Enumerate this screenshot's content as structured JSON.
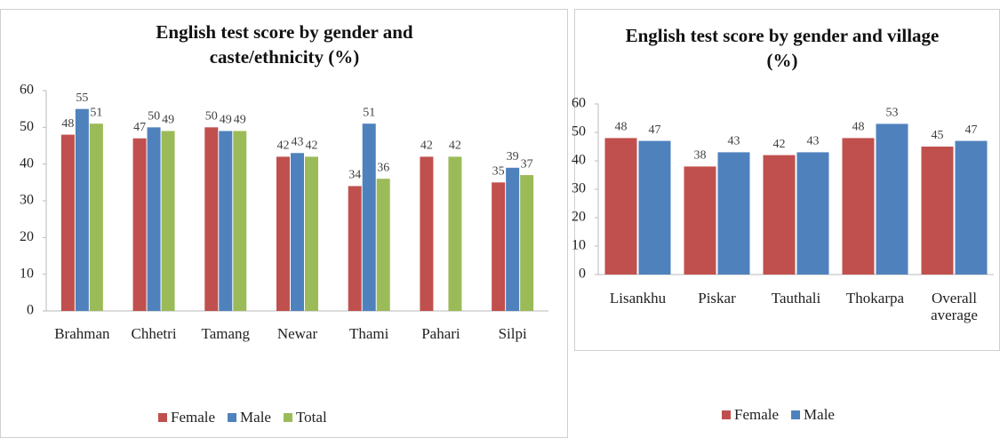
{
  "chart_data": [
    {
      "type": "bar",
      "title": "English  test score by gender and caste/ethnicity (%)",
      "categories": [
        "Brahman",
        "Chhetri",
        "Tamang",
        "Newar",
        "Thami",
        "Pahari",
        "Silpi"
      ],
      "series": [
        {
          "name": "Female",
          "color": "#c0504d",
          "values": [
            48,
            47,
            50,
            42,
            34,
            42,
            35
          ]
        },
        {
          "name": "Male",
          "color": "#4f81bd",
          "values": [
            55,
            50,
            49,
            43,
            51,
            null,
            39
          ]
        },
        {
          "name": "Total",
          "color": "#9bbb59",
          "values": [
            51,
            49,
            49,
            42,
            36,
            42,
            37
          ]
        }
      ],
      "ylim": [
        0,
        60
      ],
      "yticks": [
        0,
        10,
        20,
        30,
        40,
        50,
        60
      ],
      "legend": "bottom"
    },
    {
      "type": "bar",
      "title": "English  test score by gender and village  (%)",
      "categories": [
        "Lisankhu",
        "Piskar",
        "Tauthali",
        "Thokarpa",
        "Overall average"
      ],
      "series": [
        {
          "name": "Female",
          "color": "#c0504d",
          "values": [
            48,
            38,
            42,
            48,
            45
          ]
        },
        {
          "name": "Male",
          "color": "#4f81bd",
          "values": [
            47,
            43,
            43,
            53,
            47
          ]
        }
      ],
      "ylim": [
        0,
        60
      ],
      "yticks": [
        0,
        10,
        20,
        30,
        40,
        50,
        60
      ],
      "legend": "bottom"
    }
  ]
}
